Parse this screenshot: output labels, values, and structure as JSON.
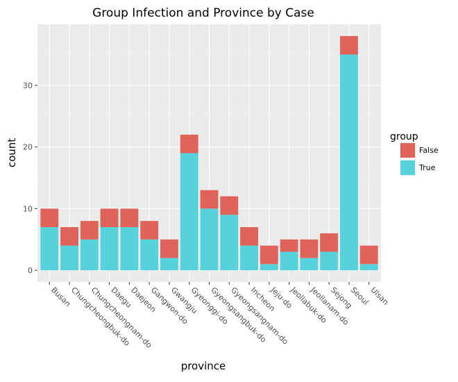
{
  "chart_data": {
    "type": "bar",
    "stacked": true,
    "title": "Group Infection and Province by Case",
    "xlabel": "province",
    "ylabel": "count",
    "ylim": [
      -1.9,
      39.9
    ],
    "yticks": [
      0,
      10,
      20,
      30
    ],
    "grid": true,
    "legend_position": "right",
    "legend_title": "group",
    "categories": [
      "Busan",
      "Chungcheongbuk-do",
      "Chungcheongnam-do",
      "Daegu",
      "Daejeon",
      "Gangwon-do",
      "Gwangju",
      "Gyeonggi-do",
      "Gyeongsangbuk-do",
      "Gyeongsangnam-do",
      "Incheon",
      "Jeju-do",
      "Jeollabuk-do",
      "Jeollanam-do",
      "Sejong",
      "Seoul",
      "Ulsan"
    ],
    "series": [
      {
        "name": "True",
        "color": "#56d2dc",
        "values": [
          7,
          4,
          5,
          7,
          7,
          5,
          2,
          19,
          10,
          9,
          4,
          1,
          3,
          2,
          3,
          35,
          1
        ]
      },
      {
        "name": "False",
        "color": "#e0635a",
        "values": [
          3,
          3,
          3,
          3,
          3,
          3,
          3,
          3,
          3,
          3,
          3,
          3,
          2,
          3,
          3,
          3,
          3
        ]
      }
    ],
    "legend_order": [
      "False",
      "True"
    ]
  }
}
